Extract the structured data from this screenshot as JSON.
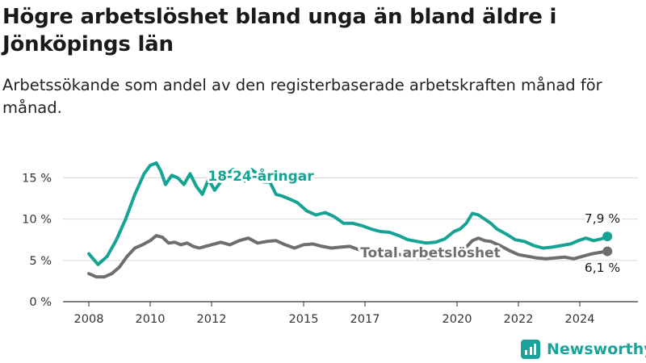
{
  "title": "Högre arbetslöshet bland unga än bland äldre i Jönköpings län",
  "subtitle": "Arbetssökande som andel av den registerbaserade arbetskraften månad för månad.",
  "brand": "Newsworthy",
  "colors": {
    "youth": "#16a394",
    "total": "#6e6e6e",
    "grid": "#d9d9d9",
    "axis": "#333333"
  },
  "chart_data": {
    "type": "line",
    "title": "Högre arbetslöshet bland unga än bland äldre i Jönköpings län",
    "subtitle": "Arbetssökande som andel av den registerbaserade arbetskraften månad för månad.",
    "xlabel": "",
    "ylabel": "",
    "xlim": [
      2008,
      2025.2
    ],
    "ylim": [
      0,
      17
    ],
    "y_ticks": [
      0,
      5,
      10,
      15
    ],
    "y_tick_labels": [
      "0 %",
      "5 %",
      "10 %",
      "15 %"
    ],
    "x_ticks": [
      2008,
      2010,
      2012,
      2015,
      2017,
      2020,
      2022,
      2024
    ],
    "x_tick_labels": [
      "2008",
      "2010",
      "2012",
      "2015",
      "2017",
      "2020",
      "2022",
      "2024"
    ],
    "grid": true,
    "series": [
      {
        "name": "18-24-åringar",
        "color": "#16a394",
        "end_label": "7,9 %",
        "x": [
          2008.0,
          2008.3,
          2008.6,
          2008.9,
          2009.2,
          2009.5,
          2009.8,
          2010.0,
          2010.2,
          2010.35,
          2010.5,
          2010.7,
          2010.9,
          2011.1,
          2011.3,
          2011.5,
          2011.7,
          2011.9,
          2012.1,
          2012.3,
          2012.5,
          2012.7,
          2012.9,
          2013.1,
          2013.3,
          2013.5,
          2013.7,
          2013.9,
          2014.1,
          2014.3,
          2014.5,
          2014.8,
          2015.1,
          2015.4,
          2015.7,
          2016.0,
          2016.3,
          2016.6,
          2016.9,
          2017.2,
          2017.5,
          2017.8,
          2018.1,
          2018.4,
          2018.7,
          2019.0,
          2019.3,
          2019.6,
          2019.9,
          2020.1,
          2020.3,
          2020.5,
          2020.7,
          2020.9,
          2021.1,
          2021.3,
          2021.6,
          2021.9,
          2022.2,
          2022.5,
          2022.8,
          2023.1,
          2023.4,
          2023.7,
          2023.95,
          2024.2,
          2024.45,
          2024.7,
          2024.9
        ],
        "y": [
          5.8,
          4.5,
          5.5,
          7.5,
          10.0,
          13.0,
          15.5,
          16.5,
          16.8,
          15.8,
          14.2,
          15.3,
          15.0,
          14.2,
          15.5,
          14.0,
          13.0,
          14.8,
          13.5,
          14.5,
          15.5,
          16.0,
          15.8,
          14.6,
          16.0,
          15.5,
          14.5,
          14.5,
          13.0,
          12.8,
          12.5,
          12.0,
          11.0,
          10.5,
          10.8,
          10.3,
          9.5,
          9.5,
          9.2,
          8.8,
          8.5,
          8.4,
          8.0,
          7.5,
          7.3,
          7.1,
          7.2,
          7.6,
          8.5,
          8.8,
          9.5,
          10.7,
          10.5,
          10.0,
          9.5,
          8.8,
          8.2,
          7.5,
          7.3,
          6.8,
          6.5,
          6.6,
          6.8,
          7.0,
          7.4,
          7.7,
          7.4,
          7.6,
          7.9
        ]
      },
      {
        "name": "Total arbetslöshet",
        "color": "#6e6e6e",
        "end_label": "6,1 %",
        "x": [
          2008.0,
          2008.25,
          2008.5,
          2008.75,
          2009.0,
          2009.25,
          2009.5,
          2009.75,
          2010.0,
          2010.2,
          2010.4,
          2010.6,
          2010.8,
          2011.0,
          2011.2,
          2011.4,
          2011.6,
          2011.8,
          2012.0,
          2012.3,
          2012.6,
          2012.9,
          2013.2,
          2013.5,
          2013.8,
          2014.1,
          2014.4,
          2014.7,
          2015.0,
          2015.3,
          2015.6,
          2015.9,
          2016.2,
          2016.5,
          2016.8,
          2017.1,
          2017.4,
          2017.7,
          2018.0,
          2018.3,
          2018.6,
          2018.9,
          2019.2,
          2019.5,
          2019.8,
          2020.1,
          2020.3,
          2020.5,
          2020.7,
          2020.9,
          2021.1,
          2021.4,
          2021.7,
          2022.0,
          2022.3,
          2022.6,
          2022.9,
          2023.2,
          2023.5,
          2023.8,
          2024.1,
          2024.4,
          2024.7,
          2024.9
        ],
        "y": [
          3.4,
          3.0,
          3.0,
          3.4,
          4.2,
          5.5,
          6.5,
          6.9,
          7.4,
          8.0,
          7.8,
          7.1,
          7.2,
          6.9,
          7.1,
          6.7,
          6.5,
          6.7,
          6.9,
          7.2,
          6.9,
          7.4,
          7.7,
          7.1,
          7.3,
          7.4,
          6.9,
          6.5,
          6.9,
          7.0,
          6.7,
          6.5,
          6.6,
          6.7,
          6.3,
          6.2,
          6.0,
          5.9,
          5.8,
          5.6,
          5.4,
          5.3,
          5.3,
          5.4,
          5.8,
          6.2,
          6.6,
          7.4,
          7.7,
          7.4,
          7.3,
          6.8,
          6.2,
          5.7,
          5.5,
          5.3,
          5.2,
          5.3,
          5.4,
          5.2,
          5.5,
          5.8,
          6.0,
          6.1
        ]
      }
    ]
  }
}
